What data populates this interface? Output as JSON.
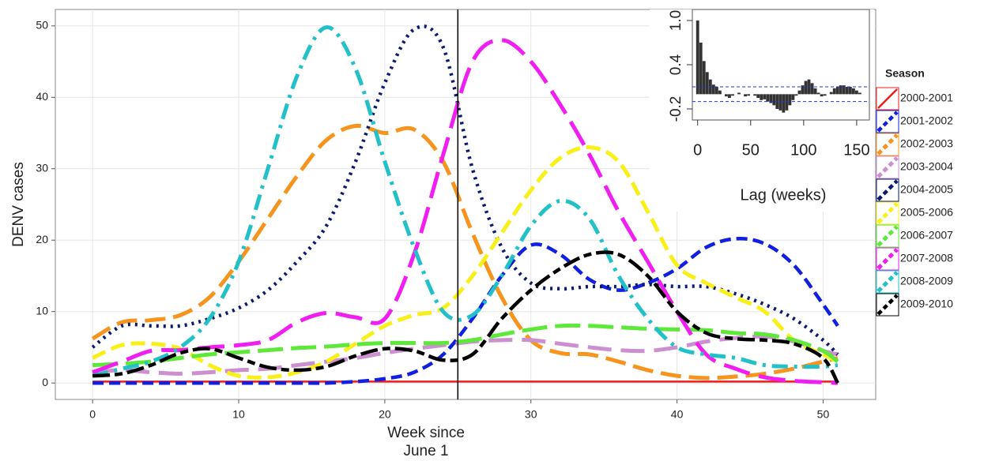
{
  "chart_data": [
    {
      "type": "line",
      "ylabel": "DENV cases",
      "xlabel": [
        "Week since",
        "June 1"
      ],
      "xlim": [
        -2.55,
        53.6
      ],
      "ylim": [
        -2.3,
        52.3
      ],
      "xticks": [
        0,
        10,
        20,
        30,
        40,
        50
      ],
      "yticks": [
        0,
        10,
        20,
        30,
        40,
        50
      ],
      "grid": true,
      "vline": 25,
      "legend_title": "Season",
      "legend": "right",
      "x": [
        0,
        2,
        4,
        6,
        8,
        10,
        12,
        14,
        16,
        18,
        20,
        22,
        24,
        26,
        28,
        30,
        32,
        34,
        36,
        38,
        40,
        42,
        44,
        46,
        48,
        50,
        51
      ],
      "series": [
        {
          "name": "2000-2001",
          "color": "#ee1c1c",
          "values": [
            0.2,
            0.2,
            0.2,
            0.2,
            0.2,
            0.2,
            0.2,
            0.2,
            0.2,
            0.2,
            0.2,
            0.2,
            0.2,
            0.2,
            0.2,
            0.2,
            0.2,
            0.2,
            0.2,
            0.2,
            0.2,
            0.2,
            0.2,
            0.2,
            0.2,
            0.2,
            0.2
          ]
        },
        {
          "name": "2001-2002",
          "color": "#1020e0",
          "values": [
            0,
            0,
            0,
            0,
            0,
            0,
            0,
            0,
            0,
            0.2,
            0.6,
            1.5,
            4,
            9,
            15,
            19.3,
            18,
            14.5,
            13,
            14,
            16,
            19,
            20.2,
            19.5,
            16.5,
            11,
            8
          ]
        },
        {
          "name": "2002-2003",
          "color": "#f7941d",
          "values": [
            6.2,
            8.5,
            8.8,
            9.5,
            12,
            17,
            23,
            29,
            34,
            36,
            35,
            35.5,
            31,
            21,
            12,
            6,
            4.2,
            4,
            3,
            1.8,
            1,
            0.7,
            0.9,
            1.3,
            2,
            3,
            3.5
          ]
        },
        {
          "name": "2003-2004",
          "color": "#cc8fd0",
          "values": [
            1.5,
            1.8,
            1.5,
            1.3,
            1.5,
            1.8,
            2,
            2.5,
            3,
            3.5,
            4.2,
            4.8,
            5.3,
            5.8,
            6,
            6,
            5.5,
            5,
            4.6,
            4.5,
            5,
            5.8,
            6.3,
            6.5,
            5.8,
            4.5,
            4
          ]
        },
        {
          "name": "2004-2005",
          "color": "#0a1a6e",
          "values": [
            5,
            8,
            8,
            8,
            9,
            10.5,
            13,
            17,
            22,
            31,
            42,
            49.5,
            47,
            30,
            19,
            14,
            13.2,
            13.5,
            13.5,
            13.8,
            13.5,
            13.5,
            12.5,
            11,
            9,
            6,
            4
          ]
        },
        {
          "name": "2005-2006",
          "color": "#f8f018",
          "values": [
            3.5,
            5.3,
            5.5,
            4.8,
            2.5,
            1,
            0.8,
            1.5,
            3,
            5.5,
            8,
            9.5,
            10.5,
            15,
            21,
            27,
            31.5,
            33,
            31,
            24,
            16.5,
            14,
            12,
            10,
            6,
            4,
            3
          ]
        },
        {
          "name": "2006-2007",
          "color": "#5ee83a",
          "values": [
            2.5,
            2.7,
            3,
            3.5,
            4,
            4.3,
            4.6,
            4.9,
            5.1,
            5.4,
            5.6,
            5.6,
            5.6,
            6,
            6.8,
            7.5,
            8,
            8,
            7.8,
            7.6,
            7.5,
            7.4,
            7,
            6.8,
            6,
            4.5,
            3
          ]
        },
        {
          "name": "2007-2008",
          "color": "#f01ef0",
          "values": [
            1.5,
            3,
            4.5,
            4.6,
            5,
            5.3,
            6,
            8.5,
            9.8,
            9.2,
            9,
            18,
            32,
            45,
            48,
            45,
            39,
            32,
            24,
            17,
            10,
            4,
            2,
            0.8,
            0.3,
            0.1,
            0
          ]
        },
        {
          "name": "2008-2009",
          "color": "#22c0c8",
          "values": [
            1,
            2,
            3,
            5,
            9,
            17,
            30,
            43,
            49.8,
            44,
            31,
            19,
            10,
            9.5,
            15,
            22,
            25.5,
            23,
            15,
            9,
            5,
            4,
            3.5,
            2.5,
            2.3,
            2.3,
            2.5
          ]
        },
        {
          "name": "2009-2010",
          "color": "#000000",
          "values": [
            1,
            1.3,
            2.5,
            4.2,
            4.8,
            3.5,
            2.2,
            1.8,
            2.3,
            3.8,
            4.8,
            4.5,
            3.2,
            4,
            9,
            13,
            16,
            18,
            18,
            15,
            10,
            7,
            6.2,
            6,
            5.5,
            3.5,
            0
          ]
        }
      ]
    },
    {
      "type": "histogram",
      "xlabel": "Lag (weeks)",
      "xlim": [
        -5,
        162
      ],
      "ylim": [
        -0.35,
        1.15
      ],
      "xticks": [
        0,
        50,
        100,
        150
      ],
      "yticks": [
        {
          "value": -0.2,
          "label": "-0.2"
        },
        0.4,
        {
          "value": 1,
          "label": "1.0"
        }
      ],
      "ci": [
        -0.1,
        0.1
      ],
      "color": "#333333",
      "ci_color": "#2233dd",
      "x": [
        0,
        3,
        6,
        9,
        12,
        15,
        18,
        21,
        24,
        27,
        30,
        33,
        36,
        39,
        42,
        45,
        48,
        51,
        54,
        57,
        60,
        63,
        66,
        69,
        72,
        75,
        78,
        81,
        84,
        87,
        90,
        93,
        96,
        99,
        102,
        105,
        108,
        111,
        114,
        117,
        120,
        123,
        126,
        129,
        132,
        135,
        138,
        141,
        144,
        147,
        150,
        153,
        156
      ],
      "values": [
        1,
        0.7,
        0.45,
        0.3,
        0.2,
        0.13,
        0.1,
        0.05,
        0,
        -0.03,
        -0.05,
        -0.02,
        0,
        0.02,
        0,
        -0.03,
        -0.02,
        0,
        -0.02,
        -0.05,
        -0.08,
        -0.07,
        -0.1,
        -0.12,
        -0.15,
        -0.2,
        -0.22,
        -0.25,
        -0.22,
        -0.15,
        -0.08,
        -0.02,
        0.05,
        0.12,
        0.18,
        0.2,
        0.15,
        0.08,
        0.02,
        -0.03,
        -0.02,
        0,
        0.03,
        0.08,
        0.1,
        0.12,
        0.12,
        0.1,
        0.1,
        0.08,
        0.05,
        0.02,
        0
      ]
    }
  ]
}
